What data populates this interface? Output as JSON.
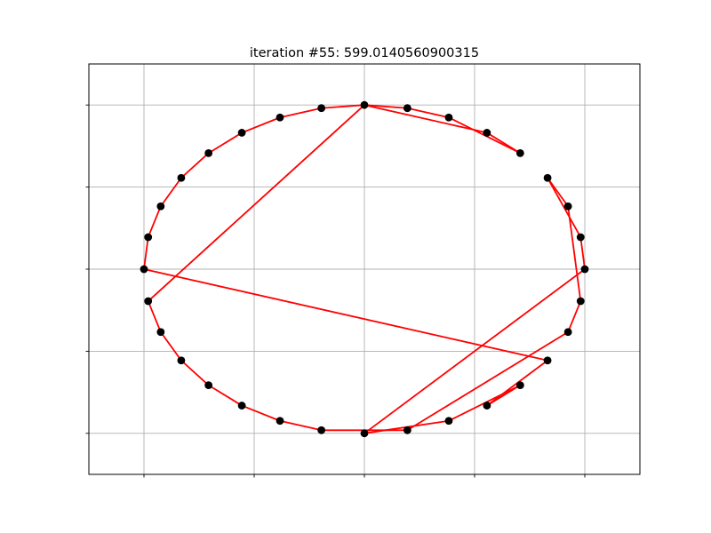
{
  "chart_data": {
    "type": "scatter",
    "title": "iteration #55: 599.0140560900315",
    "xlabel": "",
    "ylabel": "",
    "xlim": [
      -1.25,
      1.25
    ],
    "ylim": [
      -1.25,
      1.25
    ],
    "xticks": [
      -1.0,
      -0.5,
      0.0,
      0.5,
      1.0
    ],
    "yticks": [
      -1.0,
      -0.5,
      0.0,
      0.5,
      1.0
    ],
    "tick_labels_visible": false,
    "grid": true,
    "legend": "none",
    "point_color": "#000000",
    "line_color": "#ff0000",
    "points": [
      {
        "x": 0.0,
        "y": 1.0
      },
      {
        "x": 0.195,
        "y": 0.981
      },
      {
        "x": 0.383,
        "y": 0.924
      },
      {
        "x": 0.556,
        "y": 0.831
      },
      {
        "x": 0.707,
        "y": 0.707
      },
      {
        "x": 0.831,
        "y": 0.556
      },
      {
        "x": 0.924,
        "y": 0.383
      },
      {
        "x": 0.981,
        "y": 0.195
      },
      {
        "x": 1.0,
        "y": 0.0
      },
      {
        "x": 0.981,
        "y": -0.195
      },
      {
        "x": 0.924,
        "y": -0.383
      },
      {
        "x": 0.831,
        "y": -0.556
      },
      {
        "x": 0.707,
        "y": -0.707
      },
      {
        "x": 0.556,
        "y": -0.831
      },
      {
        "x": 0.383,
        "y": -0.924
      },
      {
        "x": 0.195,
        "y": -0.981
      },
      {
        "x": 0.0,
        "y": -1.0
      },
      {
        "x": -0.195,
        "y": -0.981
      },
      {
        "x": -0.383,
        "y": -0.924
      },
      {
        "x": -0.556,
        "y": -0.831
      },
      {
        "x": -0.707,
        "y": -0.707
      },
      {
        "x": -0.831,
        "y": -0.556
      },
      {
        "x": -0.924,
        "y": -0.383
      },
      {
        "x": -0.981,
        "y": -0.195
      },
      {
        "x": -1.0,
        "y": 0.0
      },
      {
        "x": -0.981,
        "y": 0.195
      },
      {
        "x": -0.924,
        "y": 0.383
      },
      {
        "x": -0.831,
        "y": 0.556
      },
      {
        "x": -0.707,
        "y": 0.707
      },
      {
        "x": -0.556,
        "y": 0.831
      },
      {
        "x": -0.383,
        "y": 0.924
      },
      {
        "x": -0.195,
        "y": 0.981
      }
    ],
    "tour": [
      0,
      3,
      4,
      2,
      1,
      0,
      31,
      30,
      29,
      28,
      27,
      26,
      25,
      24,
      11,
      13,
      12,
      14,
      16,
      8,
      7,
      5,
      6,
      9,
      10,
      15,
      17,
      18,
      19,
      20,
      21,
      22,
      23,
      0
    ]
  }
}
